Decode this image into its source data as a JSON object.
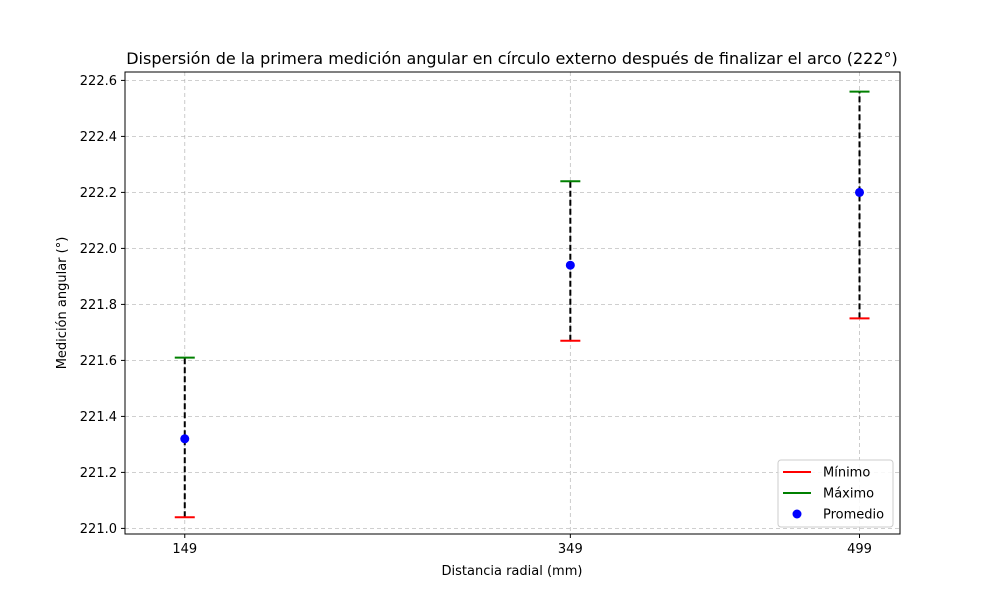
{
  "chart_data": {
    "type": "scatter",
    "title": "Dispersión de la primera medición angular en círculo externo después de finalizar el arco (222°)",
    "xlabel": "Distancia radial (mm)",
    "ylabel": "Medición angular (°)",
    "categories": [
      "149",
      "349",
      "499"
    ],
    "x": [
      149,
      349,
      499
    ],
    "series": [
      {
        "name": "Mínimo",
        "values": [
          221.04,
          221.67,
          221.75
        ],
        "color": "#ff0000",
        "marker": "hline"
      },
      {
        "name": "Máximo",
        "values": [
          221.61,
          222.24,
          222.56
        ],
        "color": "#008000",
        "marker": "hline"
      },
      {
        "name": "Promedio",
        "values": [
          221.32,
          221.94,
          222.2
        ],
        "color": "#0000ff",
        "marker": "circle"
      }
    ],
    "range_line": {
      "style": "dashed",
      "color": "#000000"
    },
    "ylim": [
      220.98,
      222.63
    ],
    "xlim": [
      118,
      520
    ],
    "yticks": [
      221.0,
      221.2,
      221.4,
      221.6,
      221.8,
      222.0,
      222.2,
      222.4,
      222.6
    ],
    "ytick_labels": [
      "221.0",
      "221.2",
      "221.4",
      "221.6",
      "221.8",
      "222.0",
      "222.2",
      "222.4",
      "222.6"
    ],
    "xtick_labels": [
      "149",
      "349",
      "499"
    ],
    "grid": true,
    "legend_position": "bottom-right"
  }
}
